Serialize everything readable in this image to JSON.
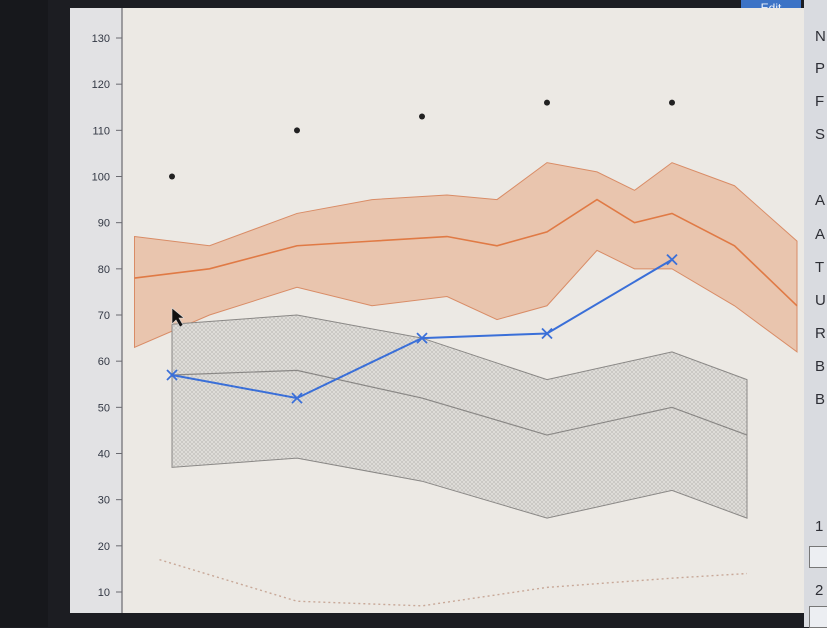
{
  "header": {
    "button_label": "Edit"
  },
  "side_panel": {
    "letters": [
      "N",
      "P",
      "F",
      "S",
      "A",
      "A",
      "T",
      "U",
      "R",
      "B",
      "B",
      "1",
      "2"
    ]
  },
  "chart_data": {
    "type": "line",
    "title": "",
    "xlabel": "",
    "ylabel": "",
    "ylim": [
      5,
      135
    ],
    "yticks": [
      130,
      120,
      110,
      100,
      90,
      80,
      70,
      60,
      50,
      40,
      30,
      20,
      10
    ],
    "grid": false,
    "colors": {
      "orange_band": "#e8a882",
      "orange_line": "#e07a45",
      "gray_band": "#bdbdbd",
      "blue_line": "#3a6fd8",
      "markers": "#222222"
    },
    "star_markers": {
      "x": [
        1,
        2,
        3,
        4,
        5
      ],
      "y": [
        100,
        110,
        113,
        116,
        116
      ]
    },
    "orange_band": {
      "x": [
        0.7,
        1.3,
        2.0,
        2.6,
        3.2,
        3.6,
        4.0,
        4.4,
        4.7,
        5.0,
        5.5,
        6.0
      ],
      "upper": [
        87,
        85,
        92,
        95,
        96,
        95,
        103,
        101,
        97,
        103,
        98,
        86
      ],
      "center": [
        78,
        80,
        85,
        86,
        87,
        85,
        88,
        95,
        90,
        92,
        85,
        72
      ],
      "lower": [
        63,
        70,
        76,
        72,
        74,
        69,
        72,
        84,
        80,
        80,
        72,
        62
      ]
    },
    "gray_band": {
      "x": [
        1,
        2,
        3,
        4,
        5,
        5.6
      ],
      "upper": [
        68,
        70,
        65,
        56,
        62,
        56
      ],
      "center": [
        57,
        58,
        52,
        44,
        50,
        44
      ],
      "lower": [
        37,
        39,
        34,
        26,
        32,
        26
      ]
    },
    "dotted_line": {
      "x": [
        0.9,
        2.0,
        3.0,
        4.0,
        5.0,
        5.6
      ],
      "y": [
        17,
        8,
        7,
        11,
        13,
        14
      ]
    },
    "series": [
      {
        "x": [
          1,
          2,
          3,
          4,
          5
        ],
        "values": [
          57,
          52,
          65,
          66,
          82
        ]
      }
    ]
  }
}
